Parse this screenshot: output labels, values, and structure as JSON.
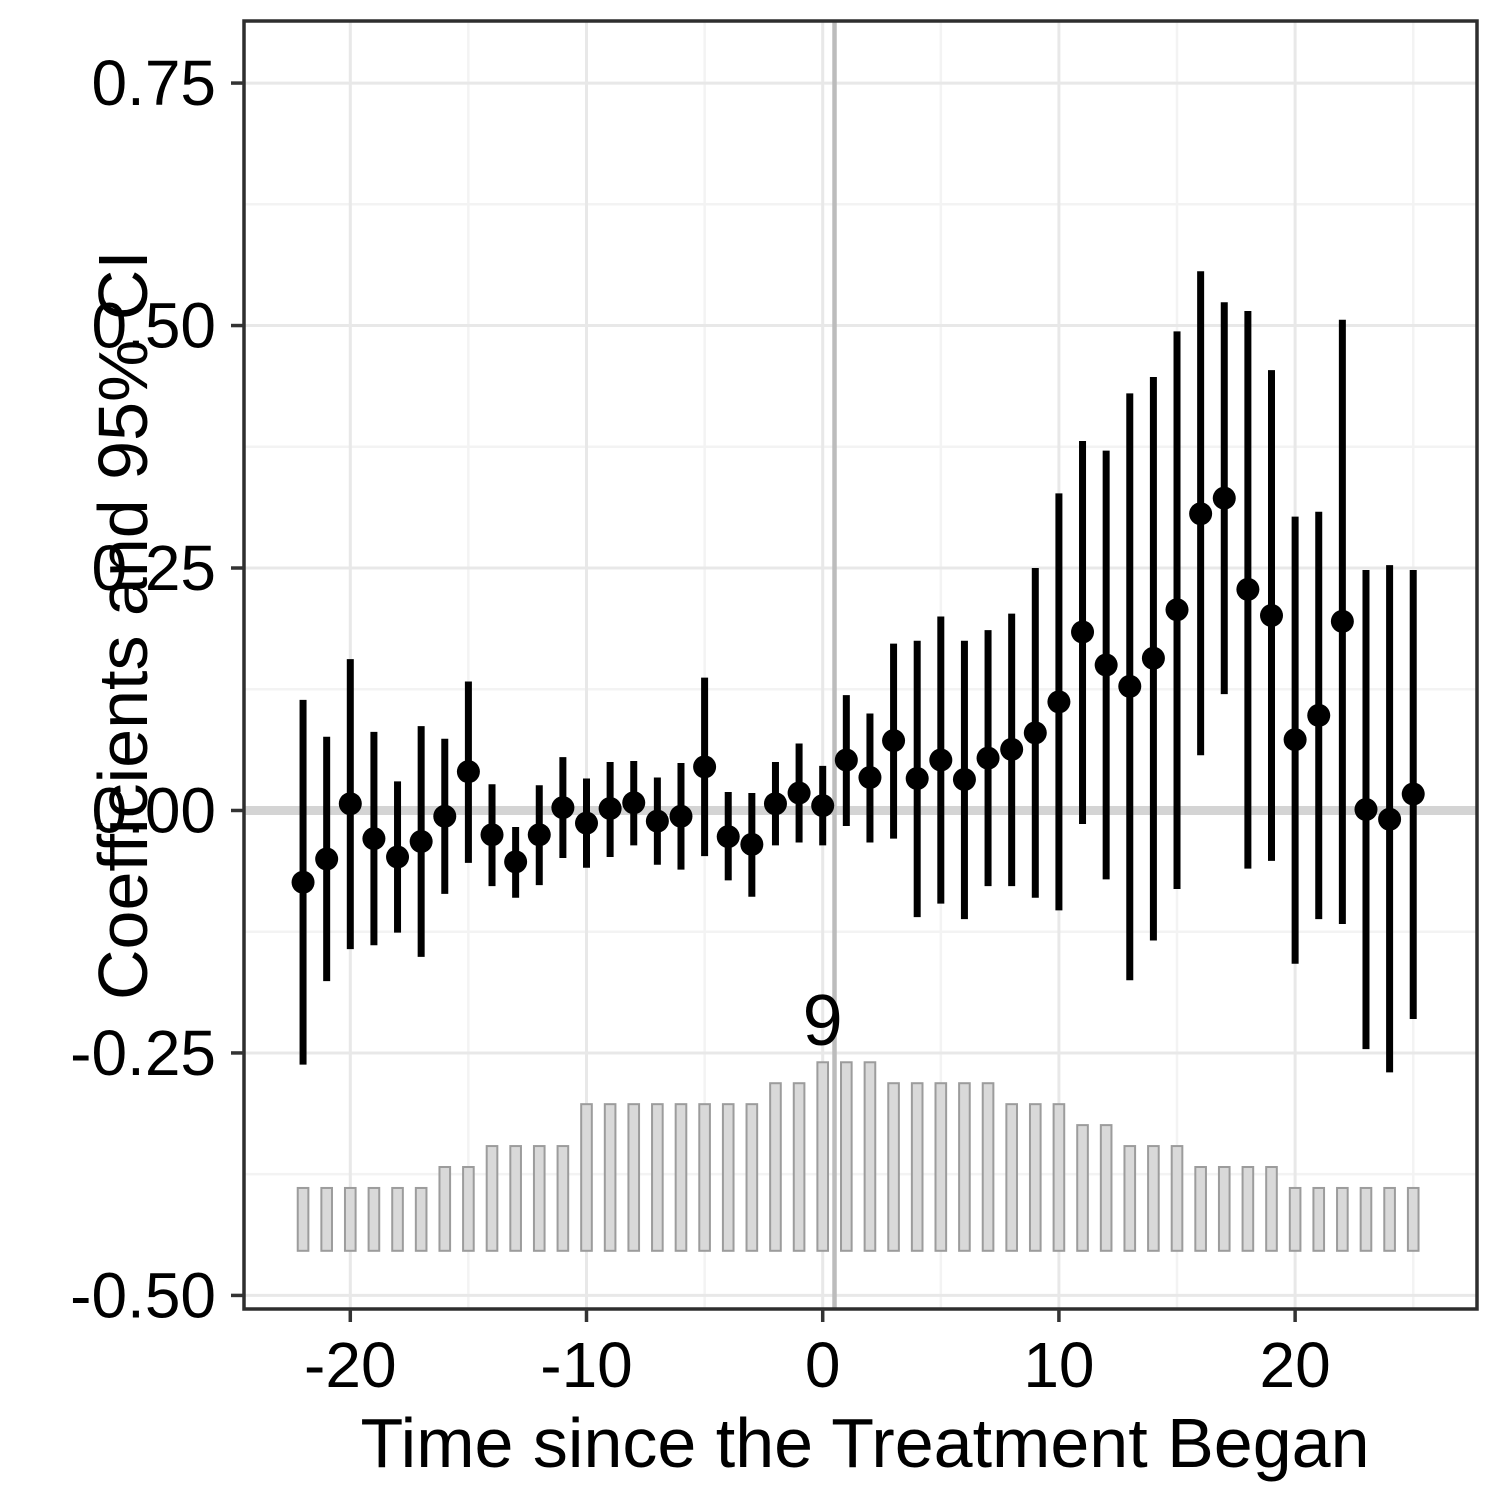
{
  "figure": {
    "xlabel": "Time since the Treatment Began",
    "ylabel": "Coefficients and 95% CI"
  },
  "chart_data": {
    "type": "scatter",
    "subtype": "event-study coefficients with 95% CI error bars and observation-count histogram",
    "title": "",
    "xlabel": "Time since the Treatment Began",
    "ylabel": "Coefficients and 95% CI",
    "xlim": [
      -24.5,
      27.7
    ],
    "ylim": [
      -0.514,
      0.814
    ],
    "grid": true,
    "legend_position": "none",
    "x_major_ticks": [
      -20,
      -10,
      0,
      10,
      20
    ],
    "x_tick_labels": [
      "-20",
      "-10",
      "0",
      "10",
      "20"
    ],
    "x_minor_ticks": [
      -15,
      -5,
      5,
      15,
      25
    ],
    "y_major_ticks": [
      -0.5,
      -0.25,
      0,
      0.25,
      0.5,
      0.75
    ],
    "y_tick_labels": [
      "-0.50",
      "-0.25",
      "0.00",
      "0.25",
      "0.50",
      "0.75"
    ],
    "y_minor_ticks": [
      -0.375,
      -0.125,
      0.125,
      0.375,
      0.625
    ],
    "reference_hline_y": 0,
    "treatment_vline_x": 0.5,
    "annotation": {
      "text": "9",
      "x": 0,
      "y": -0.242
    },
    "histogram": {
      "baseline": -0.454,
      "count_unit": 0.0216,
      "bar_width": 0.45
    },
    "points": [
      {
        "t": -22,
        "est": -0.074,
        "lo": -0.262,
        "hi": 0.114,
        "n": 3
      },
      {
        "t": -21,
        "est": -0.05,
        "lo": -0.176,
        "hi": 0.076,
        "n": 3
      },
      {
        "t": -20,
        "est": 0.007,
        "lo": -0.143,
        "hi": 0.156,
        "n": 3
      },
      {
        "t": -19,
        "est": -0.029,
        "lo": -0.139,
        "hi": 0.081,
        "n": 3
      },
      {
        "t": -18,
        "est": -0.048,
        "lo": -0.126,
        "hi": 0.03,
        "n": 3
      },
      {
        "t": -17,
        "est": -0.032,
        "lo": -0.151,
        "hi": 0.087,
        "n": 3
      },
      {
        "t": -16,
        "est": -0.006,
        "lo": -0.086,
        "hi": 0.074,
        "n": 4
      },
      {
        "t": -15,
        "est": 0.04,
        "lo": -0.054,
        "hi": 0.133,
        "n": 4
      },
      {
        "t": -14,
        "est": -0.025,
        "lo": -0.078,
        "hi": 0.027,
        "n": 5
      },
      {
        "t": -13,
        "est": -0.053,
        "lo": -0.09,
        "hi": -0.017,
        "n": 5
      },
      {
        "t": -12,
        "est": -0.025,
        "lo": -0.077,
        "hi": 0.026,
        "n": 5
      },
      {
        "t": -11,
        "est": 0.003,
        "lo": -0.049,
        "hi": 0.055,
        "n": 5
      },
      {
        "t": -10,
        "est": -0.013,
        "lo": -0.059,
        "hi": 0.033,
        "n": 7
      },
      {
        "t": -9,
        "est": 0.002,
        "lo": -0.048,
        "hi": 0.05,
        "n": 7
      },
      {
        "t": -8,
        "est": 0.008,
        "lo": -0.036,
        "hi": 0.051,
        "n": 7
      },
      {
        "t": -7,
        "est": -0.011,
        "lo": -0.056,
        "hi": 0.034,
        "n": 7
      },
      {
        "t": -6,
        "est": -0.006,
        "lo": -0.061,
        "hi": 0.049,
        "n": 7
      },
      {
        "t": -5,
        "est": 0.045,
        "lo": -0.047,
        "hi": 0.137,
        "n": 7
      },
      {
        "t": -4,
        "est": -0.027,
        "lo": -0.072,
        "hi": 0.019,
        "n": 7
      },
      {
        "t": -3,
        "est": -0.035,
        "lo": -0.089,
        "hi": 0.018,
        "n": 7
      },
      {
        "t": -2,
        "est": 0.007,
        "lo": -0.036,
        "hi": 0.05,
        "n": 8
      },
      {
        "t": -1,
        "est": 0.018,
        "lo": -0.033,
        "hi": 0.069,
        "n": 8
      },
      {
        "t": 0,
        "est": 0.005,
        "lo": -0.036,
        "hi": 0.046,
        "n": 9
      },
      {
        "t": 1,
        "est": 0.052,
        "lo": -0.016,
        "hi": 0.119,
        "n": 9
      },
      {
        "t": 2,
        "est": 0.034,
        "lo": -0.033,
        "hi": 0.1,
        "n": 9
      },
      {
        "t": 3,
        "est": 0.072,
        "lo": -0.029,
        "hi": 0.172,
        "n": 8
      },
      {
        "t": 4,
        "est": 0.033,
        "lo": -0.11,
        "hi": 0.175,
        "n": 8
      },
      {
        "t": 5,
        "est": 0.052,
        "lo": -0.096,
        "hi": 0.2,
        "n": 8
      },
      {
        "t": 6,
        "est": 0.032,
        "lo": -0.112,
        "hi": 0.175,
        "n": 8
      },
      {
        "t": 7,
        "est": 0.054,
        "lo": -0.078,
        "hi": 0.186,
        "n": 8
      },
      {
        "t": 8,
        "est": 0.063,
        "lo": -0.078,
        "hi": 0.203,
        "n": 7
      },
      {
        "t": 9,
        "est": 0.08,
        "lo": -0.09,
        "hi": 0.25,
        "n": 7
      },
      {
        "t": 10,
        "est": 0.112,
        "lo": -0.103,
        "hi": 0.327,
        "n": 7
      },
      {
        "t": 11,
        "est": 0.184,
        "lo": -0.014,
        "hi": 0.381,
        "n": 6
      },
      {
        "t": 12,
        "est": 0.15,
        "lo": -0.071,
        "hi": 0.371,
        "n": 6
      },
      {
        "t": 13,
        "est": 0.128,
        "lo": -0.175,
        "hi": 0.43,
        "n": 5
      },
      {
        "t": 14,
        "est": 0.157,
        "lo": -0.134,
        "hi": 0.447,
        "n": 5
      },
      {
        "t": 15,
        "est": 0.207,
        "lo": -0.081,
        "hi": 0.494,
        "n": 5
      },
      {
        "t": 16,
        "est": 0.306,
        "lo": 0.057,
        "hi": 0.556,
        "n": 4
      },
      {
        "t": 17,
        "est": 0.322,
        "lo": 0.12,
        "hi": 0.524,
        "n": 4
      },
      {
        "t": 18,
        "est": 0.228,
        "lo": -0.06,
        "hi": 0.515,
        "n": 4
      },
      {
        "t": 19,
        "est": 0.201,
        "lo": -0.052,
        "hi": 0.454,
        "n": 4
      },
      {
        "t": 20,
        "est": 0.073,
        "lo": -0.158,
        "hi": 0.303,
        "n": 3
      },
      {
        "t": 21,
        "est": 0.098,
        "lo": -0.112,
        "hi": 0.308,
        "n": 3
      },
      {
        "t": 22,
        "est": 0.195,
        "lo": -0.117,
        "hi": 0.506,
        "n": 3
      },
      {
        "t": 23,
        "est": 0.001,
        "lo": -0.246,
        "hi": 0.248,
        "n": 3
      },
      {
        "t": 24,
        "est": -0.009,
        "lo": -0.27,
        "hi": 0.253,
        "n": 3
      },
      {
        "t": 25,
        "est": 0.017,
        "lo": -0.215,
        "hi": 0.248,
        "n": 3
      }
    ]
  },
  "style": {
    "background": "#ffffff",
    "point_color": "#000000",
    "errorbar_color": "#000000",
    "bar_fill": "#d9d9d9",
    "bar_stroke": "#9c9c9c",
    "grid_major": "#e8e8e8",
    "grid_minor": "#f3f3f3",
    "zero_hline": "#d4d4d4",
    "treatment_vline": "#bcbcbc",
    "panel_border": "#2e2e2e",
    "tick_color": "#333333",
    "text_color": "#000000"
  }
}
